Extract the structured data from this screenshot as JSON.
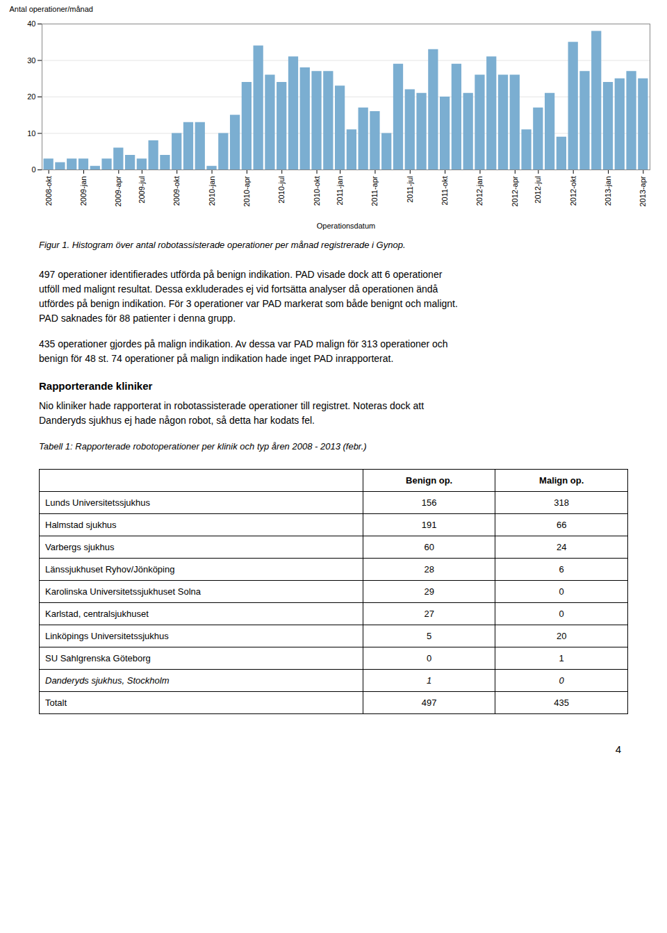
{
  "chart_data": {
    "type": "bar",
    "xlabel": "Operationsdatum",
    "ylabel": "Antal operationer/månad",
    "categories": [
      "2008-okt",
      null,
      null,
      "2009-jan",
      null,
      null,
      "2009-apr",
      null,
      "2009-jul",
      null,
      null,
      "2009-okt",
      null,
      null,
      "2010-jan",
      null,
      null,
      "2010-apr",
      null,
      null,
      "2010-jul",
      null,
      null,
      "2010-okt",
      null,
      "2011-jan",
      null,
      null,
      "2011-apr",
      null,
      null,
      "2011-jul",
      null,
      null,
      "2011-okt",
      null,
      null,
      "2012-jan",
      null,
      null,
      "2012-apr",
      null,
      "2012-jul",
      null,
      null,
      "2012-okt",
      null,
      null,
      "2013-jan",
      null,
      null,
      "2013-apr"
    ],
    "values": [
      3,
      2,
      3,
      3,
      1,
      3,
      6,
      4,
      3,
      8,
      4,
      10,
      13,
      13,
      1,
      10,
      15,
      24,
      34,
      26,
      24,
      31,
      28,
      27,
      27,
      23,
      11,
      17,
      16,
      10,
      29,
      22,
      21,
      33,
      20,
      29,
      21,
      26,
      31,
      26,
      26,
      11,
      17,
      21,
      9,
      35,
      27,
      38,
      24,
      25,
      27,
      25
    ],
    "color": "#7baed1",
    "ylim": [
      0,
      40
    ],
    "yticks": [
      0,
      10,
      20,
      30,
      40
    ],
    "grid": true,
    "caption": "Figur 1. Histogram över antal robotassisterade operationer per månad registrerade i Gynop."
  },
  "document": {
    "paragraphs": [
      [
        "497 operationer identifierades utförda på benign indikation. PAD visade dock att 6 operationer",
        "utföll med malignt resultat. Dessa exkluderades ej vid fortsätta analyser då operationen ändå",
        "utfördes på benign indikation. För 3 operationer var PAD markerat som både benignt och malignt.",
        "PAD saknades för 88 patienter i denna grupp."
      ],
      [
        "435 operationer gjordes på malign indikation. Av dessa var PAD malign för 313 operationer och",
        "benign för 48 st. 74 operationer på malign indikation hade inget PAD inrapporterat."
      ]
    ],
    "section_header": "Rapporterande kliniker",
    "section_paragraphs": [
      [
        "Nio kliniker hade rapporterat in robotassisterade operationer till registret. Noteras dock att",
        "Danderyds sjukhus ej hade någon robot, så detta har kodats fel."
      ]
    ],
    "table": {
      "caption": "Tabell 1: Rapporterade robotoperationer per klinik och typ åren 2008 - 2013 (febr.)",
      "headers": [
        "Benign op.",
        "Malign op."
      ],
      "rows": [
        {
          "label": "Lunds Universitetssjukhus",
          "values": [
            156,
            318
          ]
        },
        {
          "label": "Halmstad sjukhus",
          "values": [
            191,
            66
          ]
        },
        {
          "label": "Varbergs sjukhus",
          "values": [
            60,
            24
          ]
        },
        {
          "label": "Länssjukhuset Ryhov/Jönköping",
          "values": [
            28,
            6
          ]
        },
        {
          "label": "Karolinska Universitetssjukhuset Solna",
          "values": [
            29,
            0
          ]
        },
        {
          "label": "Karlstad, centralsjukhuset",
          "values": [
            27,
            0
          ]
        },
        {
          "label": "Linköpings Universitetssjukhus",
          "values": [
            5,
            20
          ]
        },
        {
          "label": "SU Sahlgrenska Göteborg",
          "values": [
            0,
            1
          ]
        },
        {
          "label": "Danderyds sjukhus, Stockholm",
          "values": [
            1,
            0
          ],
          "italic": true
        },
        {
          "label": "Totalt",
          "values": [
            497,
            435
          ]
        }
      ]
    },
    "page_number": "4"
  }
}
